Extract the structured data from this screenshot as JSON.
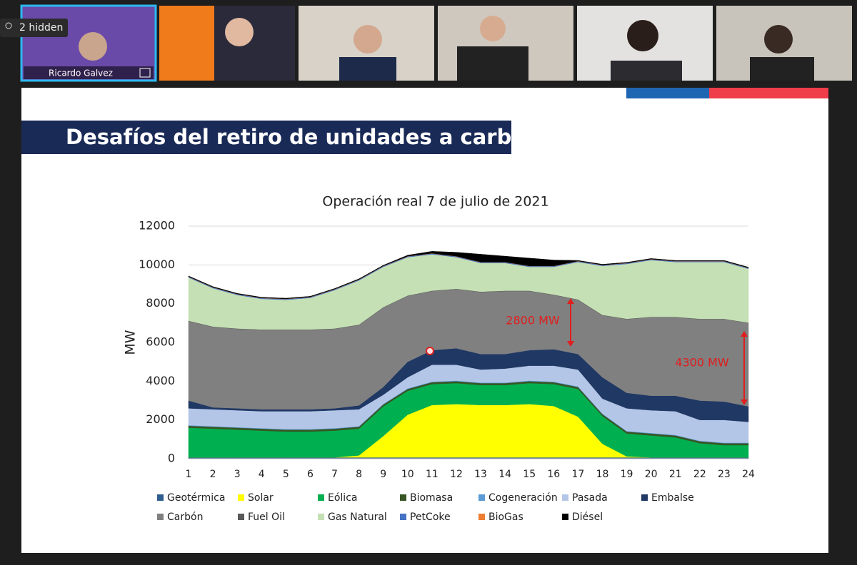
{
  "call": {
    "hidden_badge": "2 hidden",
    "speaker_name": "Ricardo Galvez"
  },
  "slide": {
    "title": "Desafíos del retiro de unidades a carbón"
  },
  "chart_data": {
    "type": "area",
    "stacked": true,
    "title": "Operación real 7 de julio de 2021",
    "y_label": "MW",
    "categories": [
      "1",
      "2",
      "3",
      "4",
      "5",
      "6",
      "7",
      "8",
      "9",
      "10",
      "11",
      "12",
      "13",
      "14",
      "15",
      "16",
      "17",
      "18",
      "19",
      "20",
      "21",
      "22",
      "23",
      "24"
    ],
    "ylim": [
      0,
      12000
    ],
    "yticks": [
      0,
      2000,
      4000,
      6000,
      8000,
      10000,
      12000
    ],
    "grid": true,
    "series": [
      {
        "name": "Geotérmica",
        "color": "#2e5e8e",
        "values": [
          70,
          70,
          70,
          70,
          70,
          70,
          70,
          70,
          70,
          70,
          70,
          70,
          70,
          70,
          70,
          70,
          70,
          70,
          70,
          70,
          70,
          70,
          70,
          70
        ]
      },
      {
        "name": "Solar",
        "color": "#ffff00",
        "values": [
          0,
          0,
          0,
          0,
          0,
          0,
          0,
          100,
          1100,
          2200,
          2700,
          2750,
          2700,
          2700,
          2750,
          2650,
          2100,
          700,
          50,
          0,
          0,
          0,
          0,
          0
        ]
      },
      {
        "name": "Eólica",
        "color": "#00b050",
        "values": [
          1530,
          1480,
          1430,
          1380,
          1330,
          1330,
          1380,
          1380,
          1530,
          1230,
          1080,
          1080,
          1030,
          1030,
          1080,
          1130,
          1430,
          1430,
          1180,
          1130,
          1030,
          730,
          630,
          630
        ]
      },
      {
        "name": "Biomasa",
        "color": "#375623",
        "values": [
          100,
          100,
          100,
          100,
          100,
          100,
          100,
          100,
          100,
          100,
          100,
          100,
          100,
          100,
          100,
          100,
          100,
          100,
          100,
          100,
          100,
          100,
          100,
          100
        ]
      },
      {
        "name": "Cogeneración",
        "color": "#5b9bd5",
        "values": [
          30,
          30,
          30,
          30,
          30,
          30,
          30,
          30,
          30,
          30,
          30,
          30,
          30,
          30,
          30,
          30,
          30,
          30,
          30,
          30,
          30,
          30,
          30,
          30
        ]
      },
      {
        "name": "Pasada",
        "color": "#b4c6e7",
        "values": [
          870,
          870,
          870,
          870,
          920,
          920,
          920,
          870,
          470,
          570,
          870,
          820,
          670,
          720,
          770,
          820,
          870,
          770,
          1170,
          1170,
          1220,
          1070,
          1170,
          1070
        ]
      },
      {
        "name": "Embalse",
        "color": "#203864",
        "values": [
          400,
          100,
          100,
          100,
          100,
          100,
          100,
          200,
          400,
          800,
          750,
          850,
          800,
          750,
          800,
          850,
          800,
          1100,
          800,
          750,
          800,
          1000,
          950,
          800
        ]
      },
      {
        "name": "Carbón",
        "color": "#808080",
        "values": [
          4100,
          4150,
          4100,
          4100,
          4100,
          4100,
          4100,
          4150,
          4100,
          3400,
          3050,
          3050,
          3200,
          3250,
          3050,
          2800,
          2800,
          3200,
          3800,
          4050,
          4050,
          4200,
          4250,
          4300
        ]
      },
      {
        "name": "Fuel Oil",
        "color": "#595959",
        "values": [
          20,
          20,
          20,
          20,
          20,
          20,
          20,
          20,
          20,
          20,
          20,
          20,
          20,
          20,
          20,
          20,
          20,
          20,
          20,
          20,
          20,
          20,
          20,
          20
        ]
      },
      {
        "name": "Gas Natural",
        "color": "#c5e0b4",
        "values": [
          2230,
          1980,
          1730,
          1580,
          1530,
          1630,
          1980,
          2280,
          2080,
          1980,
          1880,
          1630,
          1480,
          1430,
          1230,
          1430,
          1930,
          2530,
          2830,
          2930,
          2830,
          2930,
          2930,
          2780
        ]
      },
      {
        "name": "PetCoke",
        "color": "#4472c4",
        "values": [
          40,
          40,
          40,
          40,
          40,
          40,
          40,
          40,
          40,
          40,
          40,
          40,
          40,
          40,
          40,
          40,
          40,
          40,
          40,
          40,
          40,
          40,
          40,
          40
        ]
      },
      {
        "name": "BioGas",
        "color": "#ed7d31",
        "values": [
          10,
          10,
          10,
          10,
          10,
          10,
          10,
          10,
          10,
          10,
          10,
          10,
          10,
          10,
          10,
          10,
          10,
          10,
          10,
          10,
          10,
          10,
          10,
          10
        ]
      },
      {
        "name": "Diésel",
        "color": "#000000",
        "values": [
          30,
          30,
          30,
          30,
          30,
          30,
          30,
          30,
          30,
          50,
          100,
          200,
          400,
          300,
          400,
          300,
          30,
          30,
          30,
          30,
          30,
          30,
          30,
          30
        ]
      }
    ],
    "annotations": [
      "2800 MW",
      "4300 MW"
    ]
  }
}
